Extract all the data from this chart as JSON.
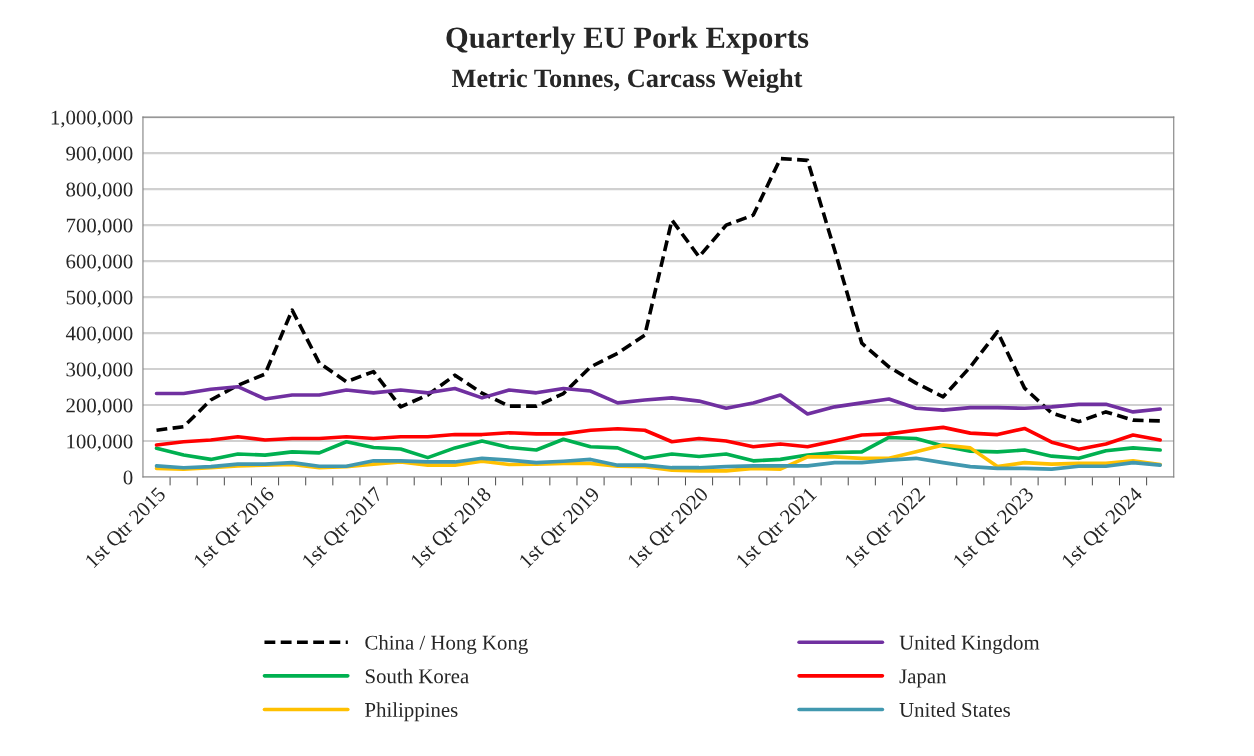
{
  "chart_data": {
    "type": "line",
    "title": "Quarterly EU Pork Exports",
    "subtitle": "Metric Tonnes, Carcass Weight",
    "categories": [
      "1st Qtr 2015",
      null,
      null,
      null,
      "1st Qtr 2016",
      null,
      null,
      null,
      "1st Qtr 2017",
      null,
      null,
      null,
      "1st Qtr 2018",
      null,
      null,
      null,
      "1st Qtr 2019",
      null,
      null,
      null,
      "1st Qtr 2020",
      null,
      null,
      null,
      "1st Qtr 2021",
      null,
      null,
      null,
      "1st Qtr 2022",
      null,
      null,
      null,
      "1st Qtr 2023",
      null,
      null,
      null,
      "1st Qtr 2024",
      null
    ],
    "ylim": [
      0,
      1000000
    ],
    "yticks": [
      0,
      {
        "value": 100000,
        "label": "100,000"
      },
      {
        "value": 200000,
        "label": "200,000"
      },
      {
        "value": 300000,
        "label": "300,000"
      },
      {
        "value": 400000,
        "label": "400,000"
      },
      {
        "value": 500000,
        "label": "500,000"
      },
      {
        "value": 600000,
        "label": "600,000"
      },
      {
        "value": 700000,
        "label": "700,000"
      },
      {
        "value": 800000,
        "label": "800,000"
      },
      {
        "value": 900000,
        "label": "900,000"
      },
      {
        "value": 1000000,
        "label": "1,000,000"
      }
    ],
    "grid": "y",
    "legend": "bottom",
    "series": [
      {
        "name": "China / Hong Kong",
        "color": "#000000",
        "line_style": "dashed",
        "values": [
          130000,
          140000,
          214000,
          255000,
          286000,
          464000,
          317000,
          265000,
          293000,
          195000,
          228000,
          283000,
          233000,
          197000,
          197000,
          232000,
          306000,
          344000,
          394000,
          714000,
          612000,
          700000,
          728000,
          885000,
          880000,
          630000,
          372000,
          306000,
          261000,
          223000,
          306000,
          404000,
          247000,
          178000,
          154000,
          181000,
          158000,
          156000
        ]
      },
      {
        "name": "South Korea",
        "color": "#00b050",
        "line_style": "solid",
        "values": [
          80000,
          61000,
          49000,
          64000,
          61000,
          70000,
          67000,
          98000,
          82000,
          78000,
          54000,
          81000,
          100000,
          82000,
          75000,
          105000,
          84000,
          81000,
          52000,
          64000,
          57000,
          64000,
          45000,
          49000,
          61000,
          68000,
          70000,
          110000,
          107000,
          86000,
          72000,
          70000,
          75000,
          58000,
          52000,
          73000,
          81000,
          75000
        ]
      },
      {
        "name": "Philippines",
        "color": "#ffc000",
        "line_style": "solid",
        "values": [
          24000,
          22000,
          26000,
          31000,
          33000,
          35000,
          26000,
          29000,
          36000,
          42000,
          33000,
          33000,
          44000,
          35000,
          36000,
          38000,
          38000,
          30000,
          29000,
          19000,
          17000,
          17000,
          24000,
          22000,
          56000,
          56000,
          52000,
          52000,
          70000,
          89000,
          81000,
          29000,
          40000,
          36000,
          38000,
          38000,
          45000,
          35000
        ]
      },
      {
        "name": "United Kingdom",
        "color": "#7030a0",
        "line_style": "solid",
        "values": [
          232000,
          232000,
          244000,
          251000,
          217000,
          228000,
          228000,
          242000,
          234000,
          242000,
          234000,
          246000,
          220000,
          242000,
          234000,
          246000,
          239000,
          206000,
          214000,
          220000,
          211000,
          191000,
          206000,
          228000,
          175000,
          195000,
          206000,
          217000,
          191000,
          186000,
          193000,
          193000,
          191000,
          195000,
          202000,
          202000,
          181000,
          189000
        ]
      },
      {
        "name": "Japan",
        "color": "#ff0000",
        "line_style": "solid",
        "values": [
          89000,
          98000,
          103000,
          112000,
          103000,
          107000,
          107000,
          112000,
          107000,
          112000,
          112000,
          118000,
          118000,
          123000,
          120000,
          120000,
          130000,
          134000,
          130000,
          98000,
          107000,
          100000,
          84000,
          92000,
          84000,
          100000,
          117000,
          120000,
          130000,
          138000,
          122000,
          118000,
          135000,
          97000,
          77000,
          92000,
          117000,
          103000
        ]
      },
      {
        "name": "United States",
        "color": "#4198af",
        "line_style": "solid",
        "values": [
          31000,
          26000,
          29000,
          36000,
          36000,
          40000,
          30000,
          30000,
          45000,
          45000,
          42000,
          42000,
          52000,
          47000,
          40000,
          44000,
          49000,
          33000,
          33000,
          26000,
          26000,
          29000,
          31000,
          31000,
          31000,
          40000,
          40000,
          47000,
          52000,
          40000,
          29000,
          24000,
          24000,
          22000,
          30000,
          30000,
          40000,
          33000
        ]
      }
    ]
  }
}
